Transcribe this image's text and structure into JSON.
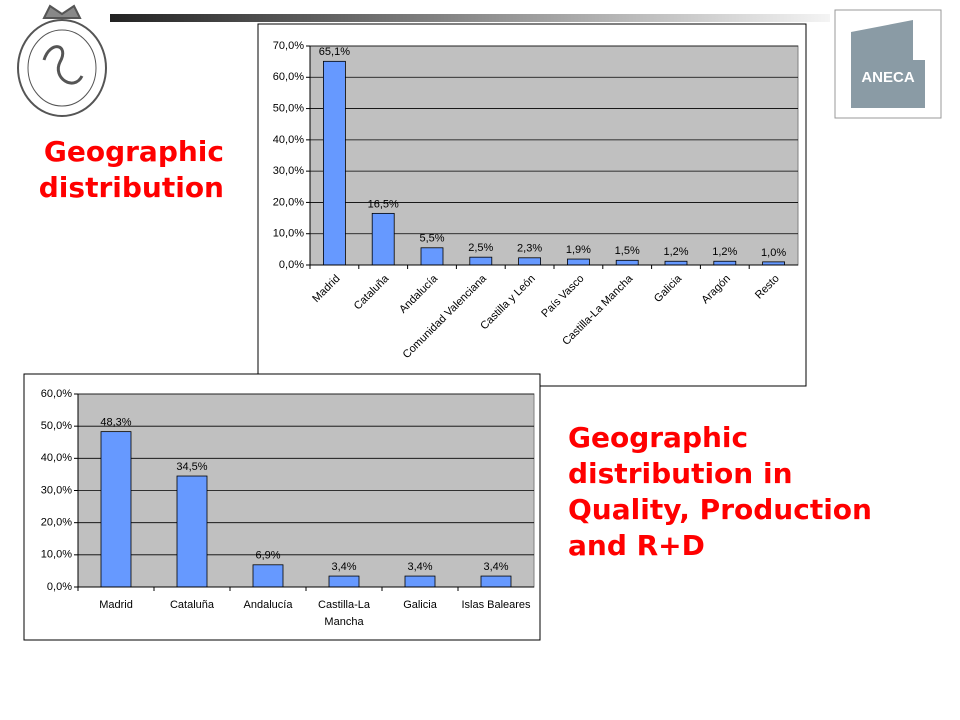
{
  "logo": {
    "text": "ANECA"
  },
  "chart_data": [
    {
      "type": "bar",
      "title": "Geographic distribution",
      "categories": [
        "Madrid",
        "Cataluña",
        "Andalucía",
        "Comunidad Valenciana",
        "Castilla y León",
        "País Vasco",
        "Castilla-La Mancha",
        "Galicia",
        "Aragón",
        "Resto"
      ],
      "values": [
        65.1,
        16.5,
        5.5,
        2.5,
        2.3,
        1.9,
        1.5,
        1.2,
        1.2,
        1.0
      ],
      "value_labels": [
        "65,1%",
        "16,5%",
        "5,5%",
        "2,5%",
        "2,3%",
        "1,9%",
        "1,5%",
        "1,2%",
        "1,2%",
        "1,0%"
      ],
      "color": "#6699ff",
      "ylim": [
        0,
        70
      ],
      "yticks": [
        {
          "value": 0,
          "label": "0,0%"
        },
        {
          "value": 10,
          "label": "10,0%"
        },
        {
          "value": 20,
          "label": "20,0%"
        },
        {
          "value": 30,
          "label": "30,0%"
        },
        {
          "value": 40,
          "label": "40,0%"
        },
        {
          "value": 50,
          "label": "50,0%"
        },
        {
          "value": 60,
          "label": "60,0%"
        },
        {
          "value": 70,
          "label": "70,0%"
        }
      ],
      "grid": true
    },
    {
      "type": "bar",
      "title": "Geographic distribution in Quality, Production and R+D",
      "categories": [
        "Madrid",
        "Cataluña",
        "Andalucía",
        "Castilla-La Mancha",
        "Galicia",
        "Islas Baleares"
      ],
      "values": [
        48.3,
        34.5,
        6.9,
        3.4,
        3.4,
        3.4
      ],
      "value_labels": [
        "48,3%",
        "34,5%",
        "6,9%",
        "3,4%",
        "3,4%",
        "3,4%"
      ],
      "color": "#6699ff",
      "ylim": [
        0,
        60
      ],
      "yticks": [
        {
          "value": 0,
          "label": "0,0%"
        },
        {
          "value": 10,
          "label": "10,0%"
        },
        {
          "value": 20,
          "label": "20,0%"
        },
        {
          "value": 30,
          "label": "30,0%"
        },
        {
          "value": 40,
          "label": "40,0%"
        },
        {
          "value": 50,
          "label": "50,0%"
        },
        {
          "value": 60,
          "label": "60,0%"
        }
      ],
      "grid": true
    }
  ]
}
